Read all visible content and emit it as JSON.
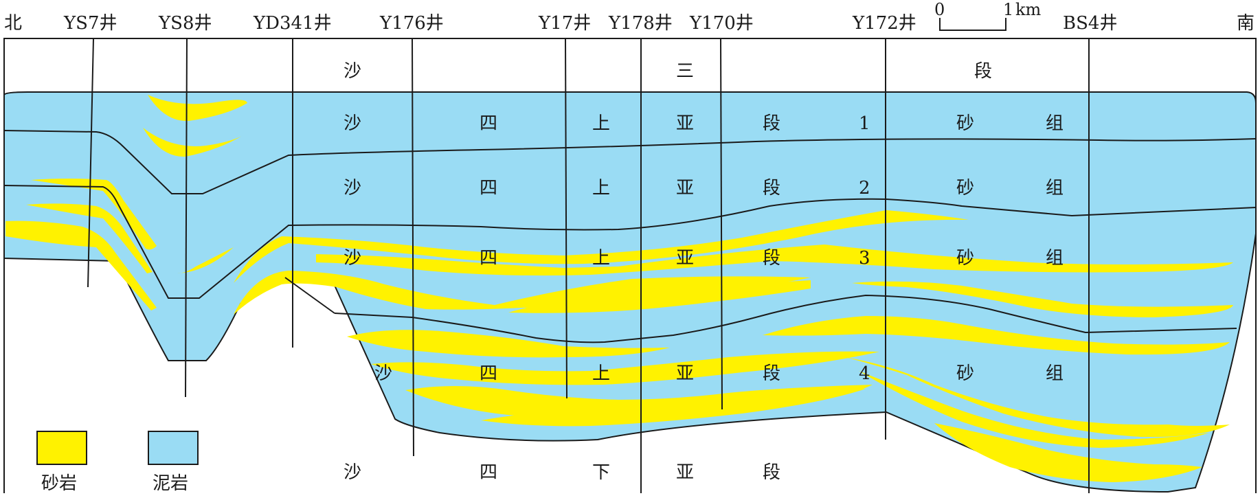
{
  "directions": {
    "north": "北",
    "south": "南"
  },
  "wells": [
    "YS7井",
    "YS8井",
    "YD341井",
    "Y176井",
    "Y17井",
    "Y178井",
    "Y170井",
    "Y172井",
    "BS4井"
  ],
  "scale_bar": {
    "start": "0",
    "end": "1",
    "unit": "km"
  },
  "stratigraphy": {
    "upper_unit": [
      "沙",
      "三",
      "段"
    ],
    "sand_group_1": [
      "沙",
      "四",
      "上",
      "亚",
      "段",
      "1",
      "砂",
      "组"
    ],
    "sand_group_2": [
      "沙",
      "四",
      "上",
      "亚",
      "段",
      "2",
      "砂",
      "组"
    ],
    "sand_group_3": [
      "沙",
      "四",
      "上",
      "亚",
      "段",
      "3",
      "砂",
      "组"
    ],
    "sand_group_4": [
      "沙",
      "四",
      "上",
      "亚",
      "段",
      "4",
      "砂",
      "组"
    ],
    "lower_unit": [
      "沙",
      "四",
      "下",
      "亚",
      "段"
    ]
  },
  "legend": [
    {
      "label": "砂岩",
      "color": "#fff200"
    },
    {
      "label": "泥岩",
      "color": "#9adcf4"
    }
  ],
  "colors": {
    "sandstone": "#fff200",
    "mudstone": "#9adcf4",
    "line": "#1a1a1a"
  }
}
